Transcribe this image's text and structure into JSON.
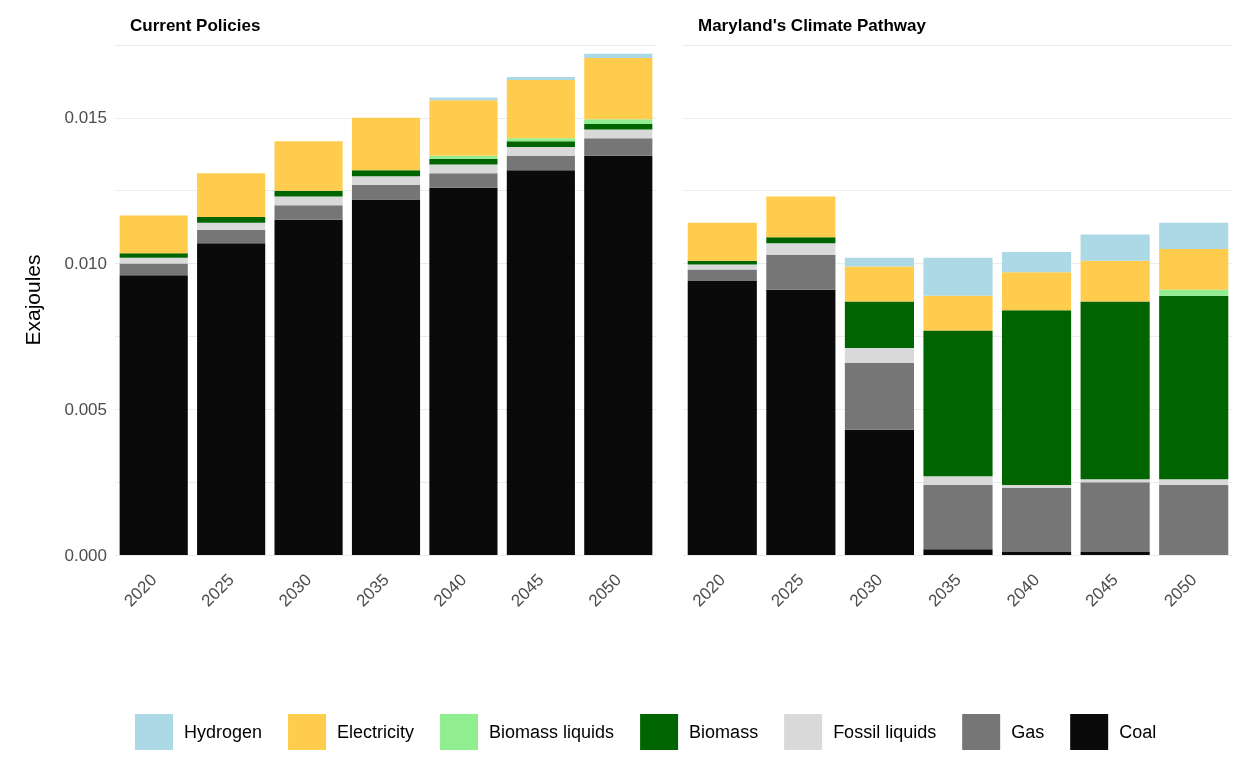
{
  "chart_data": [
    {
      "type": "bar",
      "title": "Current Policies",
      "ylabel": "Exajoules",
      "stacked": true,
      "grid": "y",
      "categories": [
        "2020",
        "2025",
        "2030",
        "2035",
        "2040",
        "2045",
        "2050"
      ],
      "ylim": [
        0,
        0.0175
      ],
      "yticks": [
        {
          "value": 0,
          "label": "0.000"
        },
        {
          "value": 0.0025,
          "label": null
        },
        {
          "value": 0.005,
          "label": "0.005"
        },
        {
          "value": 0.0075,
          "label": null
        },
        {
          "value": 0.01,
          "label": "0.010"
        },
        {
          "value": 0.0125,
          "label": null
        },
        {
          "value": 0.015,
          "label": "0.015"
        },
        {
          "value": 0.0175,
          "label": null
        }
      ],
      "series": [
        {
          "color": "#0a0a0a",
          "values": [
            0.0096,
            0.0107,
            0.0115,
            0.0122,
            0.0126,
            0.0132,
            0.0137
          ]
        },
        {
          "color": "#767676",
          "values": [
            0.0004,
            0.00045,
            0.0005,
            0.0005,
            0.0005,
            0.0005,
            0.0006
          ]
        },
        {
          "color": "#d9d9d9",
          "values": [
            0.0002,
            0.00025,
            0.0003,
            0.0003,
            0.0003,
            0.0003,
            0.0003
          ]
        },
        {
          "color": "#006400",
          "values": [
            0.00015,
            0.0002,
            0.0002,
            0.0002,
            0.0002,
            0.0002,
            0.0002
          ]
        },
        {
          "color": "#90ee90",
          "values": [
            0,
            0,
            0,
            0,
            0.0001,
            0.0001,
            0.00015
          ]
        },
        {
          "color": "#ffcc4d",
          "values": [
            0.0013,
            0.0015,
            0.0017,
            0.0018,
            0.0019,
            0.002,
            0.0021
          ]
        },
        {
          "color": "#add8e6",
          "values": [
            0,
            0,
            0,
            0,
            0.0001,
            0.0001,
            0.00015
          ]
        }
      ]
    },
    {
      "type": "bar",
      "title": "Maryland's Climate Pathway",
      "stacked": true,
      "grid": "y",
      "legend": "bottom",
      "tick_labels": "x",
      "categories": [
        "2020",
        "2025",
        "2030",
        "2035",
        "2040",
        "2045",
        "2050"
      ],
      "ylim": [
        0,
        0.0175
      ],
      "yticks": [
        0,
        0.0025,
        0.005,
        0.0075,
        0.01,
        0.0125,
        0.015,
        0.0175
      ],
      "series": [
        {
          "name": "Coal",
          "color": "#0a0a0a",
          "values": [
            0.0094,
            0.0091,
            0.0043,
            0.0002,
            0.0001,
            0.0001,
            0
          ]
        },
        {
          "name": "Gas",
          "color": "#767676",
          "values": [
            0.0004,
            0.0012,
            0.0023,
            0.0022,
            0.0022,
            0.0024,
            0.0024
          ]
        },
        {
          "name": "Fossil liquids",
          "color": "#d9d9d9",
          "values": [
            0.00017,
            0.0004,
            0.0005,
            0.0003,
            0.0001,
            0.0001,
            0.0002
          ]
        },
        {
          "name": "Biomass",
          "color": "#006400",
          "values": [
            0.00013,
            0.0002,
            0.0016,
            0.005,
            0.006,
            0.0061,
            0.0063
          ]
        },
        {
          "name": "Biomass liquids",
          "color": "#90ee90",
          "values": [
            0,
            0,
            0,
            0,
            0,
            0,
            0.0002
          ]
        },
        {
          "name": "Electricity",
          "color": "#ffcc4d",
          "values": [
            0.0013,
            0.0014,
            0.0012,
            0.0012,
            0.0013,
            0.0014,
            0.0014
          ]
        },
        {
          "name": "Hydrogen",
          "color": "#add8e6",
          "values": [
            0,
            0,
            0.0003,
            0.0013,
            0.0007,
            0.0009,
            0.0009
          ]
        }
      ]
    }
  ]
}
